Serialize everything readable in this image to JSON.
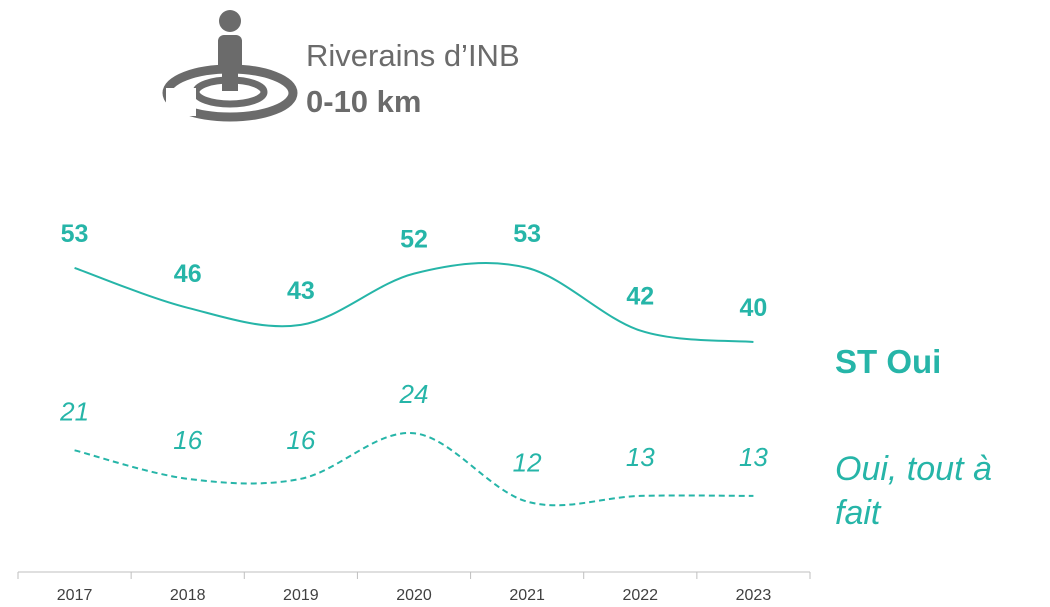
{
  "chart_data": {
    "type": "line",
    "header": {
      "title": "Riverains d’INB",
      "subtitle": "0-10 km"
    },
    "categories": [
      "2017",
      "2018",
      "2019",
      "2020",
      "2021",
      "2022",
      "2023"
    ],
    "series": [
      {
        "name": "ST Oui",
        "color": "#26b5a8",
        "style": "solid",
        "values": [
          53,
          46,
          43,
          52,
          53,
          42,
          40
        ]
      },
      {
        "name": "Oui, tout à fait",
        "color": "#26b5a8",
        "style": "dashed",
        "values": [
          21,
          16,
          16,
          24,
          12,
          13,
          13
        ]
      }
    ]
  }
}
